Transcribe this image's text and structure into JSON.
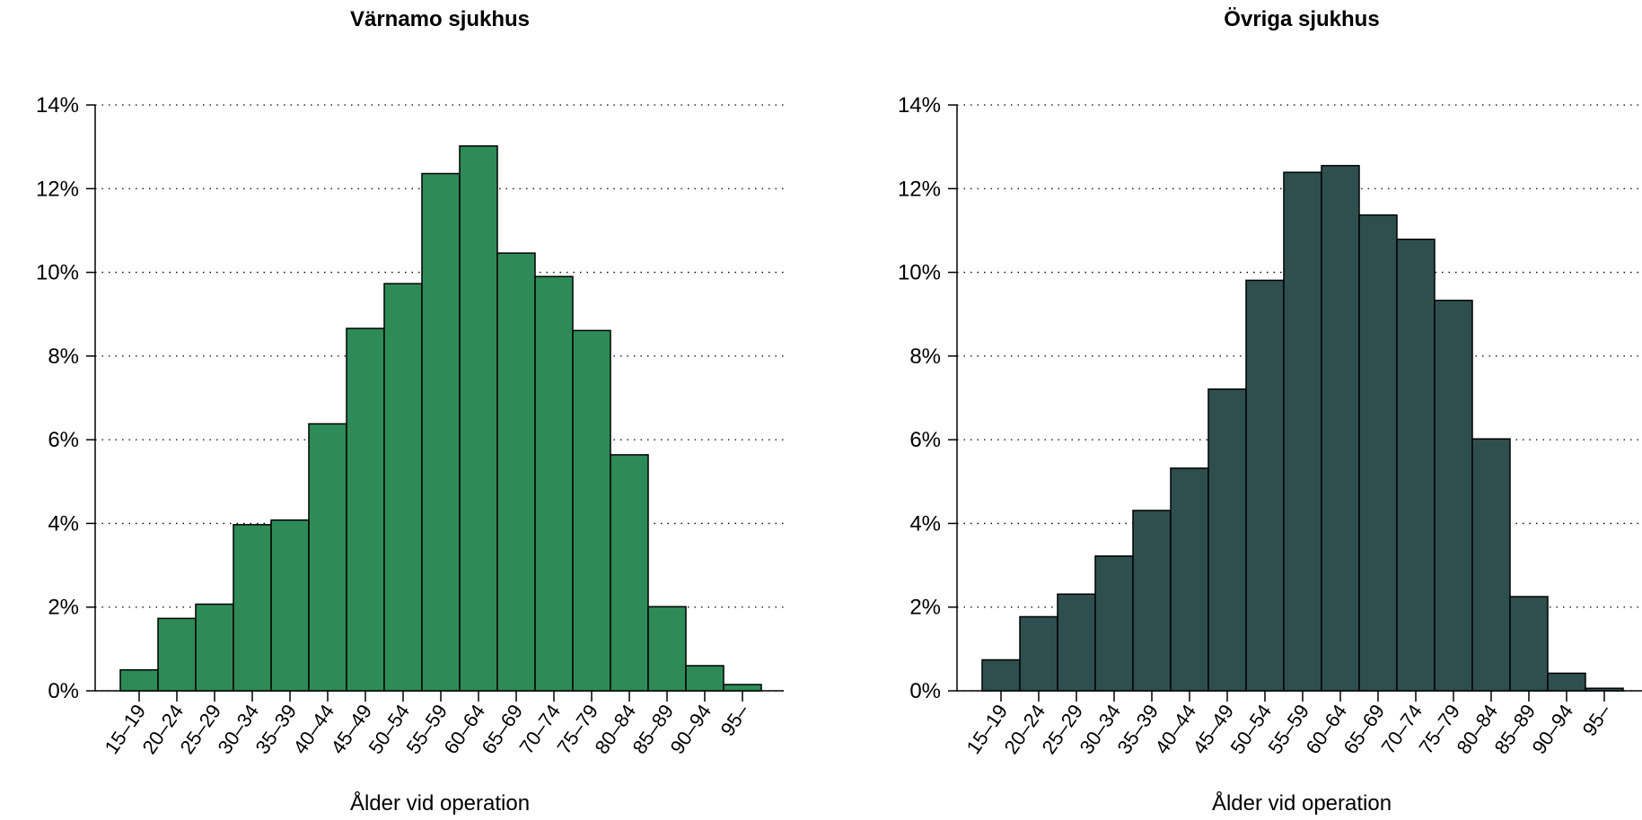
{
  "chart_data": [
    {
      "type": "bar",
      "title": "Värnamo sjukhus",
      "xlabel": "Ålder vid operation",
      "ylabel": "",
      "ylim": [
        0,
        14
      ],
      "yticks": [
        "0%",
        "2%",
        "4%",
        "6%",
        "8%",
        "10%",
        "12%",
        "14%"
      ],
      "grid": true,
      "bar_color": "#2e8b57",
      "categories": [
        "15–19",
        "20–24",
        "25–29",
        "30–34",
        "35–39",
        "40–44",
        "45–49",
        "50–54",
        "55–59",
        "60–64",
        "65–69",
        "70–74",
        "75–79",
        "80–84",
        "85–89",
        "90–94",
        "95–"
      ],
      "values": [
        0.5,
        1.73,
        2.07,
        3.97,
        4.08,
        6.38,
        8.66,
        9.73,
        12.36,
        13.02,
        10.46,
        9.9,
        8.61,
        5.64,
        2.01,
        0.6,
        0.15
      ]
    },
    {
      "type": "bar",
      "title": "Övriga sjukhus",
      "xlabel": "Ålder vid operation",
      "ylabel": "",
      "ylim": [
        0,
        14
      ],
      "yticks": [
        "0%",
        "2%",
        "4%",
        "6%",
        "8%",
        "10%",
        "12%",
        "14%"
      ],
      "grid": true,
      "bar_color": "#2f4f4f",
      "categories": [
        "15–19",
        "20–24",
        "25–29",
        "30–34",
        "35–39",
        "40–44",
        "45–49",
        "50–54",
        "55–59",
        "60–64",
        "65–69",
        "70–74",
        "75–79",
        "80–84",
        "85–89",
        "90–94",
        "95–"
      ],
      "values": [
        0.74,
        1.77,
        2.31,
        3.22,
        4.31,
        5.32,
        7.21,
        9.81,
        12.39,
        12.55,
        11.37,
        10.79,
        9.33,
        6.02,
        2.25,
        0.42,
        0.06
      ]
    }
  ]
}
